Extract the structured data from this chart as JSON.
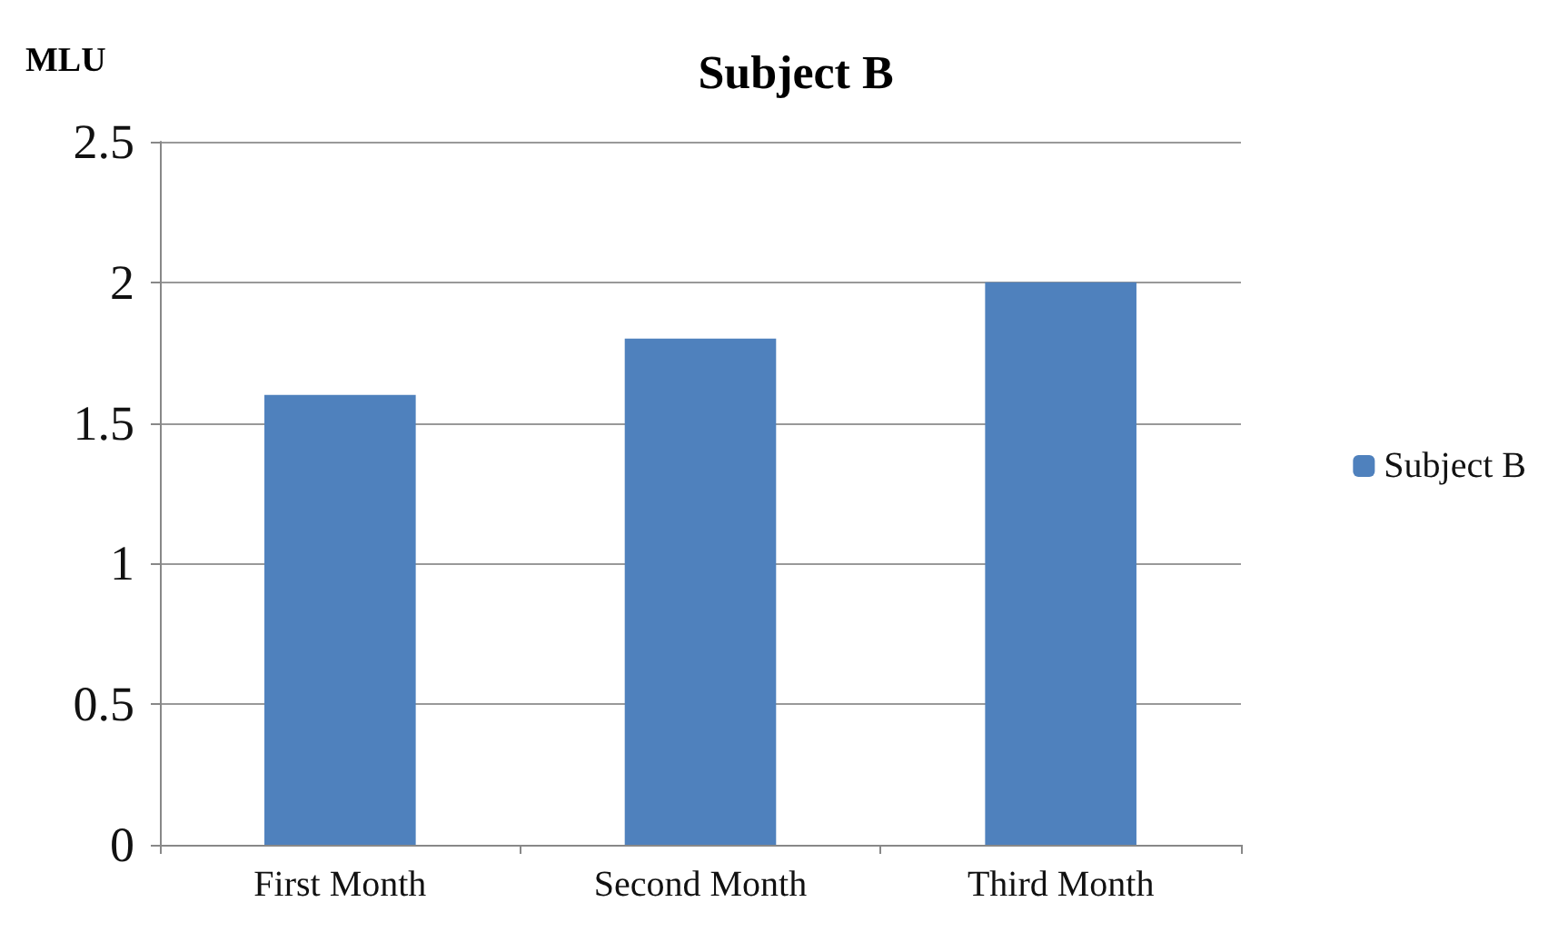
{
  "chart_data": {
    "type": "bar",
    "title": "Subject B",
    "ylabel": "MLU",
    "categories": [
      "First Month",
      "Second Month",
      "Third Month"
    ],
    "series": [
      {
        "name": "Subject B",
        "color": "#4f81bd",
        "values": [
          1.6,
          1.8,
          2.0
        ]
      }
    ],
    "ylim": [
      0,
      2.5
    ],
    "yticks": [
      0,
      0.5,
      1,
      1.5,
      2,
      2.5
    ],
    "grid": "y",
    "legend": "right"
  }
}
